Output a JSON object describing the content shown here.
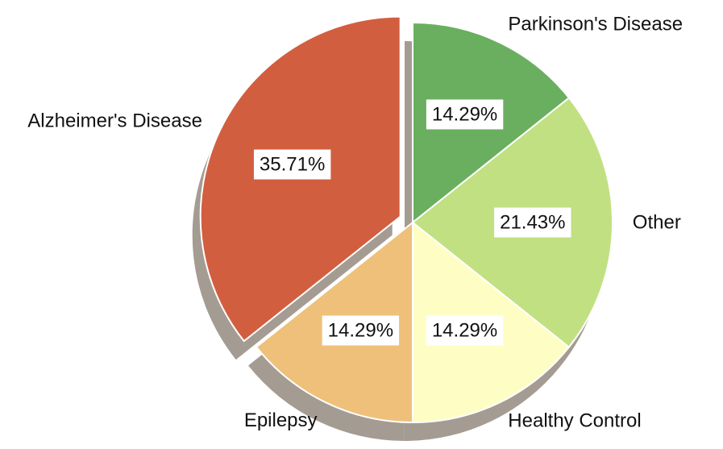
{
  "chart_data": {
    "type": "pie",
    "title": "",
    "start": "top",
    "direction": "clockwise",
    "shadow": true,
    "exploded": [
      "Alzheimer's Disease"
    ],
    "slices": [
      {
        "label": "Parkinson's Disease",
        "value": 14.29,
        "pct_label": "14.29%",
        "color": "#6aaf60"
      },
      {
        "label": "Other",
        "value": 21.43,
        "pct_label": "21.43%",
        "color": "#c1e082"
      },
      {
        "label": "Healthy Control",
        "value": 14.29,
        "pct_label": "14.29%",
        "color": "#fefec4"
      },
      {
        "label": "Epilepsy",
        "value": 14.29,
        "pct_label": "14.29%",
        "color": "#eec07a"
      },
      {
        "label": "Alzheimer's Disease",
        "value": 35.71,
        "pct_label": "35.71%",
        "color": "#d25e40"
      }
    ]
  }
}
